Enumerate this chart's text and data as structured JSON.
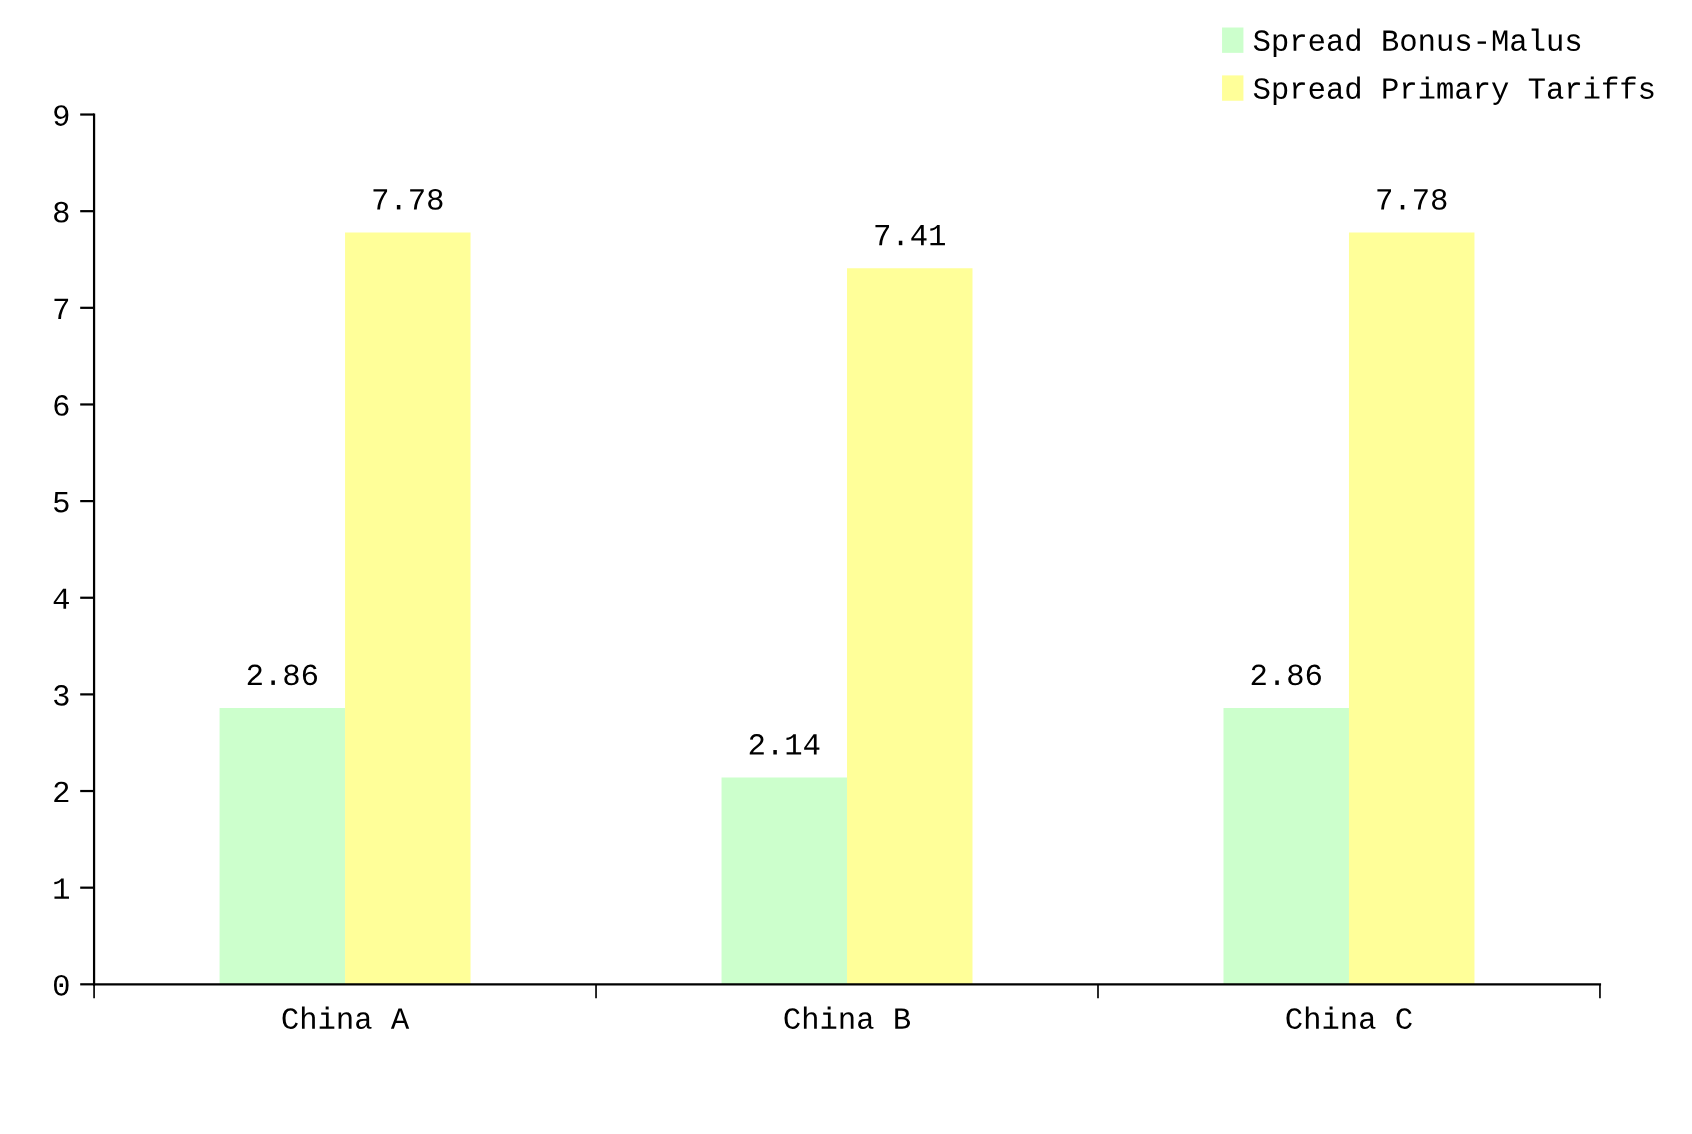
{
  "chart_data": {
    "type": "bar",
    "categories": [
      "China A",
      "China B",
      "China C"
    ],
    "series": [
      {
        "name": "Spread Bonus-Malus",
        "color": "#ccffcc",
        "values": [
          2.86,
          2.14,
          2.86
        ]
      },
      {
        "name": "Spread Primary Tariffs",
        "color": "#ffff99",
        "values": [
          7.78,
          7.41,
          7.78
        ]
      }
    ],
    "ylim": [
      0,
      9
    ],
    "yticks": [
      0,
      1,
      2,
      3,
      4,
      5,
      6,
      7,
      8,
      9
    ],
    "data_labels": true,
    "legend": "top right",
    "grid": false
  }
}
